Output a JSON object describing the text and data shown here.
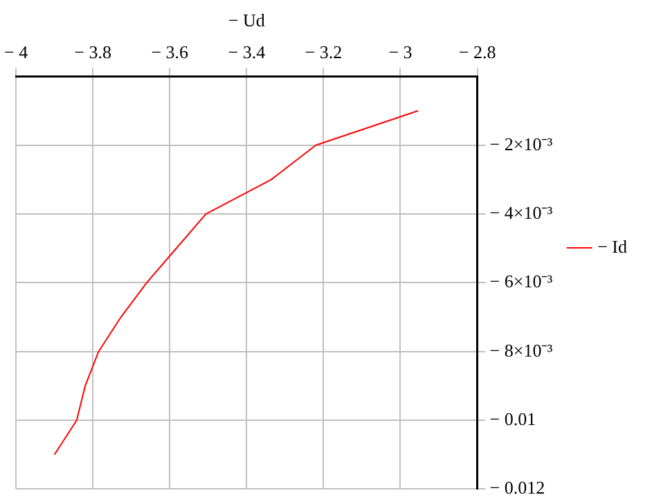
{
  "chart_data": {
    "type": "line",
    "xlabel": "− Ud",
    "x": [
      -3.9,
      -3.842,
      -3.82,
      -3.785,
      -3.727,
      -3.66,
      -3.583,
      -3.506,
      -3.336,
      -3.22,
      -2.954
    ],
    "series": [
      {
        "name": "− Id",
        "color": "#ff0000",
        "values": [
          -0.011,
          -0.01,
          -0.009,
          -0.008,
          -0.007,
          -0.006,
          -0.005,
          -0.004,
          -0.003,
          -0.002,
          -0.001
        ]
      }
    ],
    "xlim": [
      -4,
      -2.8
    ],
    "xticks": [
      {
        "value": -4,
        "label": "− 4"
      },
      {
        "value": -3.8,
        "label": "− 3.8"
      },
      {
        "value": -3.6,
        "label": "− 3.6"
      },
      {
        "value": -3.4,
        "label": "− 3.4"
      },
      {
        "value": -3.2,
        "label": "− 3.2"
      },
      {
        "value": -3,
        "label": "− 3"
      },
      {
        "value": -2.8,
        "label": "− 2.8"
      }
    ],
    "ylim": [
      -0.012,
      0
    ],
    "yticks": [
      {
        "value": -0.002,
        "label": "− 2×10⁻³"
      },
      {
        "value": -0.004,
        "label": "− 4×10⁻³"
      },
      {
        "value": -0.006,
        "label": "− 6×10⁻³"
      },
      {
        "value": -0.008,
        "label": "− 8×10⁻³"
      },
      {
        "value": -0.01,
        "label": "− 0.01"
      },
      {
        "value": -0.012,
        "label": "− 0.012"
      }
    ],
    "grid": true,
    "legend": "right",
    "marker": "none",
    "line_style": "solid"
  }
}
